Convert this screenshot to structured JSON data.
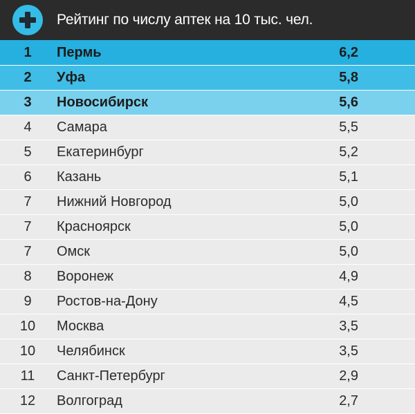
{
  "header": {
    "title": "Рейтинг по числу аптек на 10 тыс. чел.",
    "icon": "plus-circle-icon",
    "accent_color": "#35bce6",
    "background_color": "#2b2b2b"
  },
  "row_colors": {
    "top1": "#25b0e0",
    "top2": "#3fbde6",
    "top3": "#79d1ee",
    "default": "#ebebeb"
  },
  "rows": [
    {
      "rank": "1",
      "city": "Пермь",
      "value": "6,2",
      "highlight": "top1"
    },
    {
      "rank": "2",
      "city": "Уфа",
      "value": "5,8",
      "highlight": "top2"
    },
    {
      "rank": "3",
      "city": "Новосибирск",
      "value": "5,6",
      "highlight": "top3"
    },
    {
      "rank": "4",
      "city": "Самара",
      "value": "5,5",
      "highlight": "default"
    },
    {
      "rank": "5",
      "city": "Екатеринбург",
      "value": "5,2",
      "highlight": "default"
    },
    {
      "rank": "6",
      "city": "Казань",
      "value": "5,1",
      "highlight": "default"
    },
    {
      "rank": "7",
      "city": "Нижний Новгород",
      "value": "5,0",
      "highlight": "default"
    },
    {
      "rank": "7",
      "city": "Красноярск",
      "value": "5,0",
      "highlight": "default"
    },
    {
      "rank": "7",
      "city": "Омск",
      "value": "5,0",
      "highlight": "default"
    },
    {
      "rank": "8",
      "city": "Воронеж",
      "value": "4,9",
      "highlight": "default"
    },
    {
      "rank": "9",
      "city": "Ростов-на-Дону",
      "value": "4,5",
      "highlight": "default"
    },
    {
      "rank": "10",
      "city": "Москва",
      "value": "3,5",
      "highlight": "default"
    },
    {
      "rank": "10",
      "city": "Челябинск",
      "value": "3,5",
      "highlight": "default"
    },
    {
      "rank": "11",
      "city": "Санкт-Петербург",
      "value": "2,9",
      "highlight": "default"
    },
    {
      "rank": "12",
      "city": "Волгоград",
      "value": "2,7",
      "highlight": "default"
    }
  ]
}
